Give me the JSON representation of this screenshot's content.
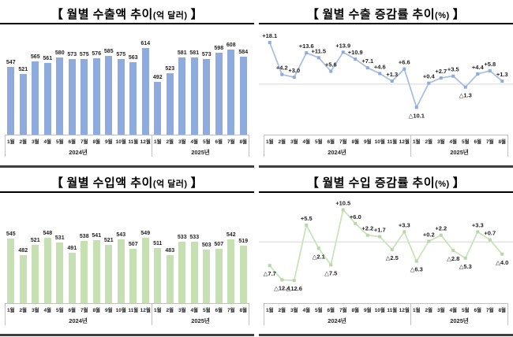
{
  "ui": {
    "bracket_open": "【",
    "bracket_close": "】"
  },
  "colors": {
    "export_bar": "#8FAADC",
    "import_bar": "#C6E0B4",
    "export_line": "#A9C1E0",
    "export_marker": "#8FAADC",
    "import_line": "#C9E3BA",
    "import_marker": "#B7D7A8",
    "zero_line": "#D6D6D6",
    "axis_line": "#C0C0C0",
    "label_text": "#1F1F1F",
    "title_text": "#000000",
    "panel_bottom_border": "#3F3F3F"
  },
  "axis": {
    "categories": [
      "1월",
      "2월",
      "3월",
      "4월",
      "5월",
      "6월",
      "7월",
      "8월",
      "9월",
      "10월",
      "11월",
      "12월",
      "1월",
      "2월",
      "3월",
      "4월",
      "5월",
      "6월",
      "7월",
      "8월"
    ],
    "year_groups": [
      {
        "label": "2024년",
        "span": 12
      },
      {
        "label": "2025년",
        "span": 8
      }
    ]
  },
  "chart_data": [
    {
      "id": "export-amount",
      "type": "bar",
      "title": "월별 수출액 추이",
      "unit": "(억 달러)",
      "values": [
        547,
        521,
        565,
        561,
        580,
        573,
        575,
        576,
        585,
        575,
        563,
        614,
        492,
        523,
        581,
        581,
        573,
        598,
        608,
        584
      ],
      "ylim": [
        300,
        700
      ],
      "grid": false,
      "color_key": "export_bar"
    },
    {
      "id": "export-growth",
      "type": "line",
      "title": "월별 수출 증감률 추이",
      "unit": "(%)",
      "values": [
        18.1,
        4.2,
        3.0,
        13.6,
        11.5,
        5.6,
        13.9,
        10.9,
        7.1,
        4.6,
        1.3,
        6.6,
        -10.1,
        0.4,
        2.7,
        3.5,
        -1.3,
        4.4,
        5.8,
        1.3
      ],
      "labels": [
        "+18.1",
        "+4.2",
        "+3.0",
        "+13.6",
        "+11.5",
        "+5.6",
        "+13.9",
        "+10.9",
        "+7.1",
        "+4.6",
        "+1.3",
        "+6.6",
        "△10.1",
        "+0.4",
        "+2.7",
        "+3.5",
        "△1.3",
        "+4.4",
        "+5.8",
        "+1.3"
      ],
      "ylim": [
        -22,
        26
      ],
      "zero_line": true,
      "color_key": "export_line",
      "marker_key": "export_marker"
    },
    {
      "id": "import-amount",
      "type": "bar",
      "title": "월별 수입액 추이",
      "unit": "(억 달러)",
      "values": [
        545,
        482,
        521,
        548,
        531,
        491,
        538,
        541,
        521,
        543,
        507,
        549,
        511,
        483,
        533,
        533,
        503,
        507,
        542,
        519
      ],
      "ylim": [
        300,
        720
      ],
      "grid": false,
      "color_key": "import_bar"
    },
    {
      "id": "import-growth",
      "type": "line",
      "title": "월별 수입 증감률 추이",
      "unit": "(%)",
      "values": [
        -7.7,
        -12.4,
        -12.6,
        5.5,
        -2.1,
        -7.5,
        10.5,
        6.0,
        2.2,
        1.7,
        -2.5,
        3.3,
        -6.3,
        0.2,
        2.2,
        -2.8,
        -5.3,
        3.3,
        0.7,
        -4.0
      ],
      "labels": [
        "△7.7",
        "△12.4",
        "△12.6",
        "+5.5",
        "△2.1",
        "△7.5",
        "+10.5",
        "+6.0",
        "+2.2",
        "+1.7",
        "△2.5",
        "+3.3",
        "△6.3",
        "+0.2",
        "+2.2",
        "△2.8",
        "△5.3",
        "+3.3",
        "+0.7",
        "△4.0"
      ],
      "ylim": [
        -20,
        16
      ],
      "zero_line": true,
      "color_key": "import_line",
      "marker_key": "import_marker"
    }
  ]
}
